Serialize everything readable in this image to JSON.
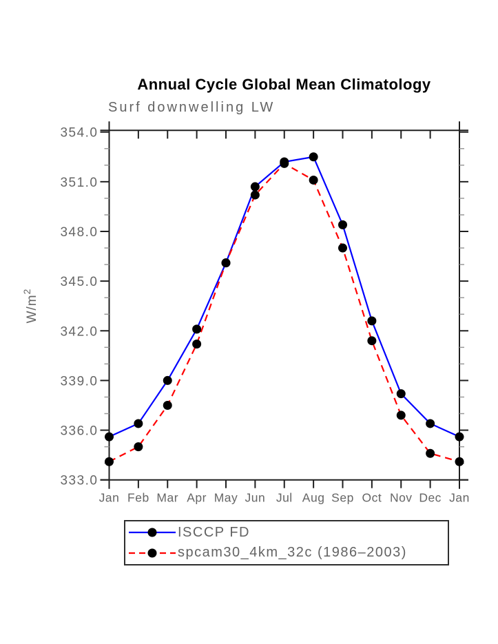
{
  "chart_data": {
    "type": "line",
    "title": "Annual Cycle Global Mean Climatology",
    "subtitle": "Surf downwelling LW",
    "ylabel": "W/m2",
    "ylabel_base": "W/m",
    "ylabel_superscript": "2",
    "x_categories": [
      "Jan",
      "Feb",
      "Mar",
      "Apr",
      "May",
      "Jun",
      "Jul",
      "Aug",
      "Sep",
      "Oct",
      "Nov",
      "Dec",
      "Jan"
    ],
    "ylim": [
      333.0,
      354.1
    ],
    "y_tick_labels": [
      "354.0",
      "351.0",
      "348.0",
      "345.0",
      "342.0",
      "339.0",
      "336.0",
      "333.0"
    ],
    "y_major_step": 3.0,
    "y_minor_tick_step": 1.0,
    "grid": "off",
    "legend_position": "below-bottom-left",
    "series": [
      {
        "name": "ISCCP FD",
        "color": "#0000ff",
        "style": "solid",
        "marker": "circle",
        "marker_color": "#000000",
        "values": [
          335.6,
          336.4,
          339.0,
          342.1,
          346.1,
          350.7,
          352.2,
          352.5,
          348.4,
          342.6,
          338.2,
          336.4,
          335.6
        ]
      },
      {
        "name": "spcam30_4km_32c (1986–2003)",
        "color": "#ff0000",
        "style": "dashed",
        "marker": "circle",
        "marker_color": "#000000",
        "values": [
          334.1,
          335.0,
          337.5,
          341.2,
          346.1,
          350.2,
          352.1,
          351.1,
          347.0,
          341.4,
          336.9,
          334.6,
          334.1
        ]
      }
    ],
    "colors": {
      "axis": "#1f1f1f",
      "minor_tick": "#999999",
      "label": "#666666",
      "title": "#000000",
      "background": "#ffffff"
    }
  }
}
